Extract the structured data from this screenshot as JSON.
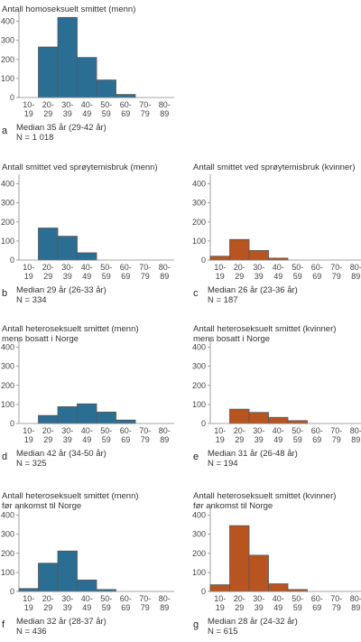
{
  "chart_data": [
    {
      "type": "bar",
      "panel": "a",
      "title": "Antall homoseksuelt smittet (menn)",
      "categories": [
        "10-\n19",
        "20-\n29",
        "30-\n39",
        "40-\n49",
        "50-\n59",
        "60-\n69",
        "70-\n79",
        "80-\n89"
      ],
      "values": [
        0,
        265,
        420,
        210,
        92,
        16,
        0,
        0
      ],
      "ylim": [
        0,
        450
      ],
      "yticks": [
        0,
        100,
        200,
        300,
        400
      ],
      "color": "#2b6e94",
      "notes": [
        "Median 35 år (29-42 år)",
        "N = 1 018"
      ]
    },
    {
      "type": "bar",
      "panel": "b",
      "title": "Antall smittet ved sprøytemisbruk (menn)",
      "categories": [
        "10-\n19",
        "20-\n29",
        "30-\n39",
        "40-\n49",
        "50-\n59",
        "60-\n69",
        "70-\n79",
        "80-\n89"
      ],
      "values": [
        0,
        168,
        125,
        38,
        0,
        0,
        0,
        0
      ],
      "ylim": [
        0,
        450
      ],
      "yticks": [
        0,
        100,
        200,
        300,
        400
      ],
      "color": "#2b6e94",
      "notes": [
        "Median 29 år (26-33 år)",
        "N = 334"
      ]
    },
    {
      "type": "bar",
      "panel": "c",
      "title": "Antall smittet ved sprøytemisbruk (kvinner)",
      "categories": [
        "10-\n19",
        "20-\n29",
        "30-\n39",
        "40-\n49",
        "50-\n59",
        "60-\n69",
        "70-\n79",
        "80-\n89"
      ],
      "values": [
        20,
        108,
        50,
        10,
        0,
        0,
        0,
        0
      ],
      "ylim": [
        0,
        450
      ],
      "yticks": [
        0,
        100,
        200,
        300,
        400
      ],
      "color": "#b85420",
      "notes": [
        "Median 26 år (23-36 år)",
        "N = 187"
      ]
    },
    {
      "type": "bar",
      "panel": "d",
      "title": "Antall heteroseksuelt smittet (menn)\nmens bosatt i Norge",
      "categories": [
        "10-\n19",
        "20-\n29",
        "30-\n39",
        "40-\n49",
        "50-\n59",
        "60-\n69",
        "70-\n79",
        "80-\n89"
      ],
      "values": [
        0,
        42,
        88,
        103,
        60,
        18,
        0,
        0
      ],
      "ylim": [
        0,
        450
      ],
      "yticks": [
        0,
        100,
        200,
        300,
        400
      ],
      "color": "#2b6e94",
      "notes": [
        "Median 42 år (34-50 år)",
        "N = 325"
      ]
    },
    {
      "type": "bar",
      "panel": "e",
      "title": "Antall heteroseksuelt smittet (kvinner)\nmens bosatt i Norge",
      "categories": [
        "10-\n19",
        "20-\n29",
        "30-\n39",
        "40-\n49",
        "50-\n59",
        "60-\n69",
        "70-\n79",
        "80-\n89"
      ],
      "values": [
        0,
        75,
        58,
        32,
        15,
        0,
        0,
        0
      ],
      "ylim": [
        0,
        450
      ],
      "yticks": [
        0,
        100,
        200,
        300,
        400
      ],
      "color": "#b85420",
      "notes": [
        "Median 31 år (26-48 år)",
        "N = 194"
      ]
    },
    {
      "type": "bar",
      "panel": "f",
      "title": "Antall heteroseksuelt smittet (menn)\nfør ankomst til Norge",
      "categories": [
        "10-\n19",
        "20-\n29",
        "30-\n39",
        "40-\n49",
        "50-\n59",
        "60-\n69",
        "70-\n79",
        "80-\n89"
      ],
      "values": [
        15,
        148,
        212,
        60,
        10,
        0,
        0,
        0
      ],
      "ylim": [
        0,
        450
      ],
      "yticks": [
        0,
        100,
        200,
        300,
        400
      ],
      "color": "#2b6e94",
      "notes": [
        "Median 32 år (28-37 år)",
        "N = 436"
      ]
    },
    {
      "type": "bar",
      "panel": "g",
      "title": "Antall heteroseksuelt smittet (kvinner)\nfør ankomst til Norge",
      "categories": [
        "10-\n19",
        "20-\n29",
        "30-\n39",
        "40-\n49",
        "50-\n59",
        "60-\n69",
        "70-\n79",
        "80-\n89"
      ],
      "values": [
        35,
        345,
        190,
        40,
        10,
        0,
        0,
        0
      ],
      "ylim": [
        0,
        450
      ],
      "yticks": [
        0,
        100,
        200,
        300,
        400
      ],
      "color": "#b85420",
      "notes": [
        "Median 28 år (24-32 år)",
        "N = 615"
      ]
    }
  ]
}
